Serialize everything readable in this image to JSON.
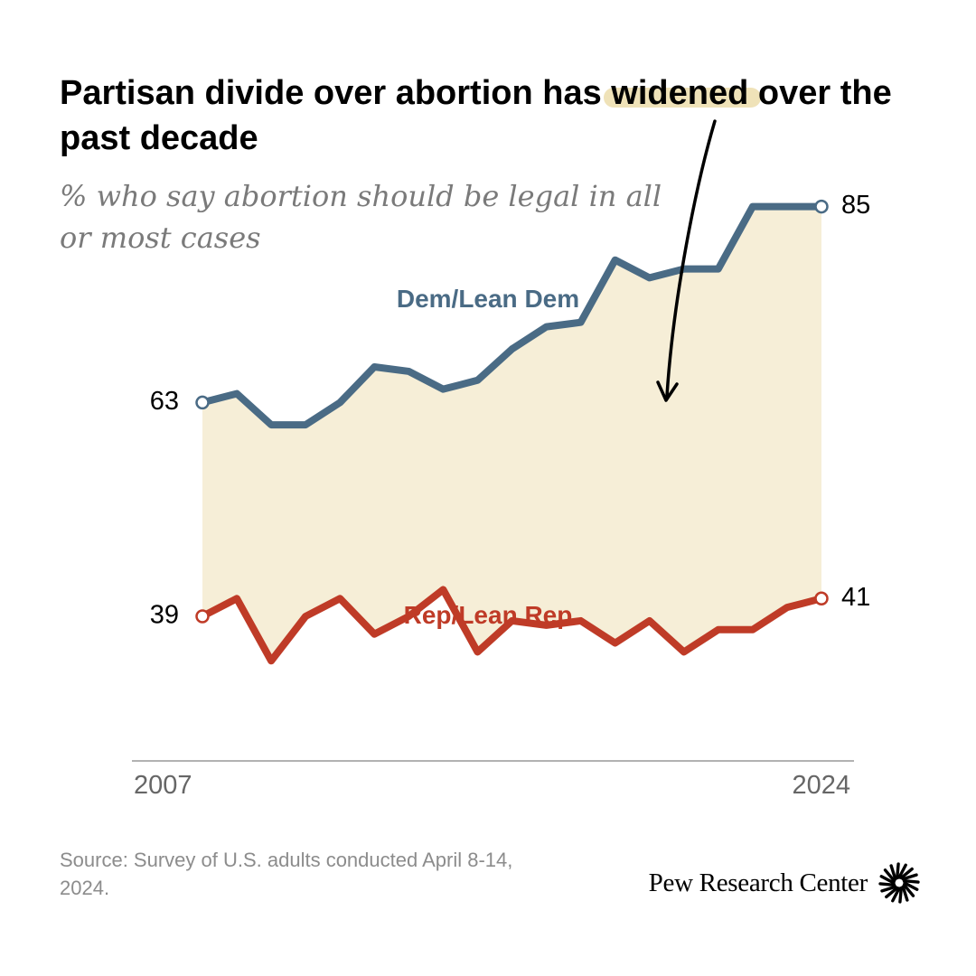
{
  "title_before": "Partisan divide over abortion has ",
  "title_highlight": "widened",
  "title_after": " over the past decade",
  "subtitle": "% who say abortion should be legal in all or most cases",
  "chart_data": {
    "type": "line",
    "x_start_label": "2007",
    "x_end_label": "2024",
    "ylim": [
      25,
      95
    ],
    "fill_between_series": true,
    "colors": {
      "dem": "#4A6B85",
      "rep": "#BF3B27",
      "fill": "#F6EED7",
      "axis": "#999999"
    },
    "series": [
      {
        "name": "Dem/Lean Dem",
        "values": [
          63,
          64,
          60.5,
          60.5,
          63,
          67,
          66.5,
          64.5,
          65.5,
          69,
          71.5,
          72,
          79,
          77,
          78,
          78,
          85,
          85,
          85
        ],
        "start_label": "63",
        "end_label": "85"
      },
      {
        "name": "Rep/Lean Rep",
        "values": [
          39,
          41,
          34,
          39,
          41,
          37,
          39,
          42,
          35,
          38.5,
          38,
          38.5,
          36,
          38.5,
          35,
          37.5,
          37.5,
          40,
          41
        ],
        "start_label": "39",
        "end_label": "41"
      }
    ]
  },
  "source": "Source: Survey of U.S. adults conducted April 8-14, 2024.",
  "logo_text": "Pew Research Center"
}
